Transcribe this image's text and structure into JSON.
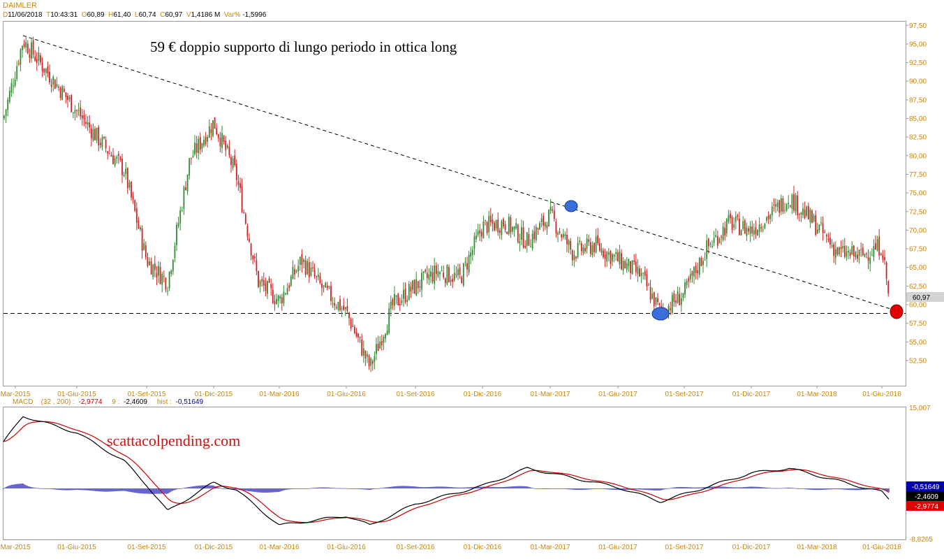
{
  "header": {
    "symbol": "DAIMLER",
    "d_key": "D",
    "date": "11/06/2018",
    "t_key": "T",
    "time": "10:43:31",
    "o_key": "O",
    "open": "60,89",
    "h_key": "H",
    "high": "61,40",
    "l_key": "L",
    "low": "60,74",
    "c_key": "C",
    "close": "60,97",
    "v_key": "V",
    "volume": "1,4186 M",
    "var_key": "Var%",
    "var": "-1,5996"
  },
  "annotation": "59 € doppio supporto di lungo periodo in ottica long",
  "watermark": "scattacolpending.com",
  "macd_header": {
    "name": "MACD",
    "params": "(32 , 200) :",
    "macd": "-2,9774",
    "sig_key": "9 :",
    "signal": "-2,4609",
    "hist_key": "hist :",
    "hist": "-0,51649"
  },
  "x_labels": [
    "Mar-2015",
    "01-Giu-2015",
    "01-Set-2015",
    "01-Dic-2015",
    "01-Mar-2016",
    "01-Giu-2016",
    "01-Set-2016",
    "01-Dic-2016",
    "01-Mar-2017",
    "01-Giu-2017",
    "01-Set-2017",
    "01-Dic-2017",
    "01-Mar-2018",
    "01-Giu-2018"
  ],
  "price_ticks": [
    "97,50",
    "95,00",
    "92,50",
    "90,00",
    "87,50",
    "85,00",
    "82,50",
    "80,00",
    "77,50",
    "75,00",
    "72,50",
    "70,00",
    "67,50",
    "65,00",
    "62,50",
    "60,00",
    "57,50",
    "55,00",
    "52,50"
  ],
  "price_tag": "60,97",
  "macd_top_tick": "15,007",
  "macd_bottom_tick": "-8,8265",
  "macd_tags": [
    "-0,51649",
    "-2,4609",
    "-2,9774"
  ],
  "colors": {
    "axis_text": "#c8860a",
    "header_key": "#c8860a",
    "macd_red": "#cc0000",
    "macd_black": "#000000",
    "hist_blue": "#0000aa",
    "bull": "#2e8b2e",
    "bear": "#cc2222",
    "marker_blue": "#3b6fd8",
    "marker_red": "#e00000",
    "tag_gray": "#d4d4d4"
  },
  "chart_data": [
    {
      "type": "candlestick",
      "title": "DAIMLER",
      "ylim": [
        50.0,
        97.5
      ],
      "support_level": 59.0,
      "trendline": [
        [
          "Mar-2015",
          96.3
        ],
        [
          "01-Giu-2018",
          59.5
        ]
      ],
      "keypoints": [
        {
          "date": "Mar-2015",
          "close": 85.0
        },
        {
          "date": "Apr-2015",
          "close": 95.5
        },
        {
          "date": "01-Giu-2015",
          "close": 86.0
        },
        {
          "date": "Jul-2015",
          "close": 82.0
        },
        {
          "date": "Ago-2015",
          "close": 78.0
        },
        {
          "date": "01-Set-2015",
          "close": 66.0
        },
        {
          "date": "Ott-2015",
          "close": 63.0
        },
        {
          "date": "Nov-2015",
          "close": 79.5
        },
        {
          "date": "01-Dic-2015",
          "close": 84.5
        },
        {
          "date": "Gen-2016",
          "close": 77.5
        },
        {
          "date": "Feb-2016",
          "close": 63.0
        },
        {
          "date": "01-Mar-2016",
          "close": 60.5
        },
        {
          "date": "Apr-2016",
          "close": 66.0
        },
        {
          "date": "Mag-2016",
          "close": 62.0
        },
        {
          "date": "01-Giu-2016",
          "close": 59.0
        },
        {
          "date": "Lug-2016",
          "close": 51.5
        },
        {
          "date": "Ago-2016",
          "close": 60.0
        },
        {
          "date": "01-Set-2016",
          "close": 62.5
        },
        {
          "date": "Ott-2016",
          "close": 64.5
        },
        {
          "date": "Nov-2016",
          "close": 63.5
        },
        {
          "date": "01-Dic-2016",
          "close": 70.5
        },
        {
          "date": "Gen-2017",
          "close": 71.0
        },
        {
          "date": "Feb-2017",
          "close": 68.5
        },
        {
          "date": "01-Mar-2017",
          "close": 72.0
        },
        {
          "date": "Apr-2017",
          "close": 67.0
        },
        {
          "date": "Mag-2017",
          "close": 68.0
        },
        {
          "date": "01-Giu-2017",
          "close": 66.0
        },
        {
          "date": "Lug-2017",
          "close": 64.0
        },
        {
          "date": "Ago-2017",
          "close": 59.0
        },
        {
          "date": "01-Set-2017",
          "close": 61.5
        },
        {
          "date": "Ott-2017",
          "close": 67.5
        },
        {
          "date": "Nov-2017",
          "close": 71.0
        },
        {
          "date": "01-Dic-2017",
          "close": 70.0
        },
        {
          "date": "Gen-2018",
          "close": 72.5
        },
        {
          "date": "Feb-2018",
          "close": 74.5
        },
        {
          "date": "01-Mar-2018",
          "close": 70.5
        },
        {
          "date": "Apr-2018",
          "close": 67.0
        },
        {
          "date": "Mag-2018",
          "close": 66.5
        },
        {
          "date": "01-Giu-2018",
          "close": 68.0
        },
        {
          "date": "11/06/2018",
          "close": 60.97
        }
      ],
      "markers": [
        {
          "date": "01-Mar-2017",
          "value": 73.0,
          "color": "blue"
        },
        {
          "date": "Ago-2017",
          "value": 59.0,
          "color": "blue"
        },
        {
          "date": "11/06/2018",
          "value": 59.0,
          "color": "red"
        }
      ]
    },
    {
      "type": "line",
      "title": "MACD",
      "ylim": [
        -8.8265,
        15.007
      ],
      "series": [
        {
          "name": "MACD",
          "color": "black"
        },
        {
          "name": "9",
          "color": "red"
        },
        {
          "name": "hist",
          "color": "blue"
        }
      ],
      "keypoints": [
        {
          "date": "Mar-2015",
          "macd": 9.0
        },
        {
          "date": "Apr-2015",
          "macd": 14.5
        },
        {
          "date": "01-Giu-2015",
          "macd": 11.0
        },
        {
          "date": "Ago-2015",
          "macd": 5.0
        },
        {
          "date": "01-Set-2015",
          "macd": 0.0
        },
        {
          "date": "Ott-2015",
          "macd": -5.5
        },
        {
          "date": "01-Dic-2015",
          "macd": 0.5
        },
        {
          "date": "Gen-2016",
          "macd": -1.0
        },
        {
          "date": "01-Mar-2016",
          "macd": -8.5
        },
        {
          "date": "01-Giu-2016",
          "macd": -6.5
        },
        {
          "date": "Lug-2016",
          "macd": -8.5
        },
        {
          "date": "01-Set-2016",
          "macd": -4.0
        },
        {
          "date": "01-Dic-2016",
          "macd": -0.2
        },
        {
          "date": "Feb-2017",
          "macd": 3.5
        },
        {
          "date": "01-Mar-2017",
          "macd": 2.5
        },
        {
          "date": "01-Giu-2017",
          "macd": -0.5
        },
        {
          "date": "Ago-2017",
          "macd": -3.5
        },
        {
          "date": "01-Dic-2017",
          "macd": 2.5
        },
        {
          "date": "Feb-2018",
          "macd": 3.5
        },
        {
          "date": "01-Mar-2018",
          "macd": 2.0
        },
        {
          "date": "01-Giu-2018",
          "macd": -1.5
        },
        {
          "date": "11/06/2018",
          "macd": -2.9774
        }
      ]
    }
  ]
}
